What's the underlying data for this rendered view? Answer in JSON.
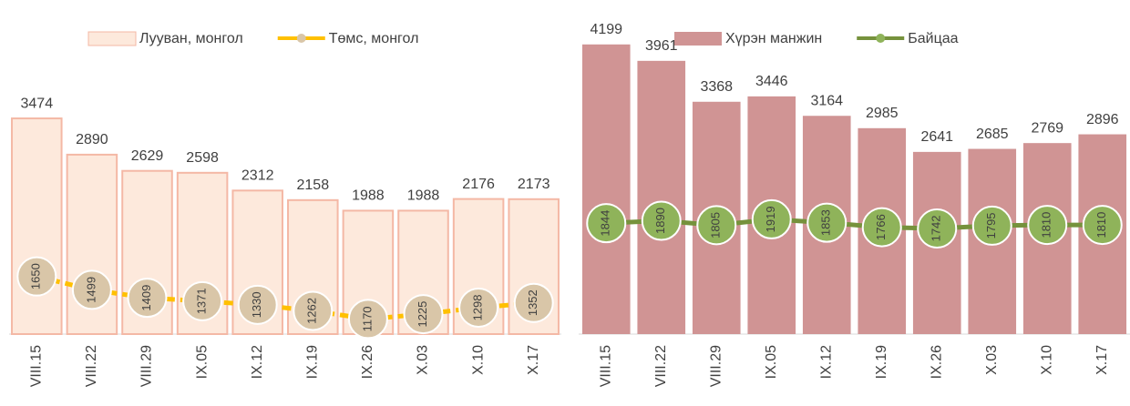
{
  "chart_data": [
    {
      "type": "bar",
      "categories": [
        "VIII.15",
        "VIII.22",
        "VIII.29",
        "IX.05",
        "IX.12",
        "IX.19",
        "IX.26",
        "X.03",
        "X.10",
        "X.17"
      ],
      "series": [
        {
          "name": "Лууван, монгол",
          "type": "bar",
          "color": "#fde9dc",
          "values": [
            3474,
            2890,
            2629,
            2598,
            2312,
            2158,
            1988,
            1988,
            2176,
            2173
          ]
        },
        {
          "name": "Төмс, монгол",
          "type": "line",
          "axis": "y2",
          "color": "#ffc000",
          "values": [
            1650,
            1499,
            1409,
            1371,
            1330,
            1262,
            1170,
            1225,
            1298,
            1352
          ]
        }
      ],
      "ylim": [
        0,
        5000
      ],
      "y2lim": [
        1000,
        4500
      ]
    },
    {
      "type": "bar",
      "categories": [
        "VIII.15",
        "VIII.22",
        "VIII.29",
        "IX.05",
        "IX.12",
        "IX.19",
        "IX.26",
        "X.03",
        "X.10",
        "X.17"
      ],
      "series": [
        {
          "name": "Хүрэн манжин",
          "type": "bar",
          "color": "#d09494",
          "values": [
            4199,
            3961,
            3368,
            3446,
            3164,
            2985,
            2641,
            2685,
            2769,
            2896
          ]
        },
        {
          "name": "Байцаа",
          "type": "line",
          "axis": "y2",
          "color": "#76923c",
          "values": [
            1844,
            1890,
            1805,
            1919,
            1853,
            1766,
            1742,
            1795,
            1810,
            1810
          ]
        }
      ],
      "ylim": [
        0,
        4500
      ],
      "y2lim": [
        -300,
        5700
      ]
    }
  ]
}
